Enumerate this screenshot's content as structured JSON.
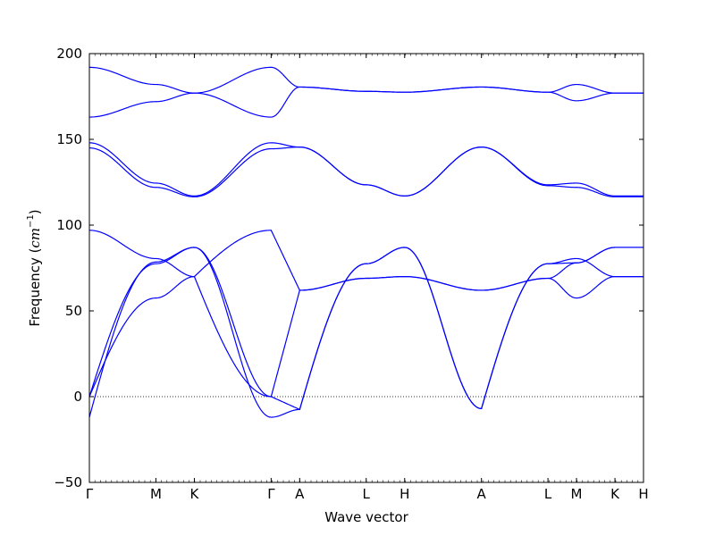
{
  "chart_data": {
    "type": "line",
    "title": "",
    "xlabel": "Wave vector",
    "ylabel_text": "Frequency (",
    "ylabel_unit_base": "cm",
    "ylabel_unit_exp": "−1",
    "ylabel_close": ")",
    "ylim": [
      -50,
      200
    ],
    "y_ticks": [
      -50,
      0,
      50,
      100,
      150,
      200
    ],
    "y_tick_labels": [
      "−50",
      "0",
      "50",
      "100",
      "150",
      "200"
    ],
    "x_ticks": [
      {
        "label": "Γ",
        "x": 0.0
      },
      {
        "label": "M",
        "x": 0.557
      },
      {
        "label": "K",
        "x": 0.879
      },
      {
        "label": "Γ",
        "x": 1.522
      },
      {
        "label": "A",
        "x": 1.761
      },
      {
        "label": "L",
        "x": 2.318
      },
      {
        "label": "H",
        "x": 2.64
      },
      {
        "label": "A",
        "x": 3.283
      },
      {
        "label": "L",
        "x": 3.84
      },
      {
        "label": "M",
        "x": 4.079
      },
      {
        "label": "K",
        "x": 4.401
      },
      {
        "label": "H",
        "x": 4.64
      }
    ],
    "xlim": [
      0,
      4.64
    ],
    "zero_line": {
      "y": 0,
      "style": "dotted"
    },
    "line_color": "#0000ff",
    "series": [
      {
        "segments": [
          {
            "x": [
              0,
              0.557
            ],
            "y": [
              192,
              182
            ],
            "shape": "cos"
          },
          {
            "x": [
              0.557,
              0.879
            ],
            "y": [
              182,
              177
            ],
            "shape": "cos"
          },
          {
            "x": [
              0.879,
              1.522
            ],
            "y": [
              177,
              192
            ],
            "shape": "cos"
          },
          {
            "x": [
              1.522,
              1.761
            ],
            "y": [
              192,
              180.5
            ],
            "shape": "cos"
          },
          {
            "x": [
              1.761,
              2.318
            ],
            "y": [
              180.5,
              178
            ],
            "shape": "cos"
          },
          {
            "x": [
              2.318,
              2.64
            ],
            "y": [
              178,
              177.5
            ],
            "shape": "cos"
          },
          {
            "x": [
              2.64,
              3.283
            ],
            "y": [
              177.5,
              180.5
            ],
            "shape": "cos"
          },
          {
            "x": [
              3.283,
              3.84
            ],
            "y": [
              180.5,
              177.5
            ],
            "shape": "cos"
          },
          {
            "x": [
              3.84,
              4.079
            ],
            "y": [
              177.5,
              182
            ],
            "shape": "cos"
          },
          {
            "x": [
              4.079,
              4.401
            ],
            "y": [
              182,
              177
            ],
            "shape": "cos"
          },
          {
            "x": [
              4.401,
              4.64
            ],
            "y": [
              177,
              177
            ],
            "shape": "cos"
          }
        ]
      },
      {
        "segments": [
          {
            "x": [
              0,
              0.557
            ],
            "y": [
              163,
              172
            ],
            "shape": "cos"
          },
          {
            "x": [
              0.557,
              0.879
            ],
            "y": [
              172,
              177
            ],
            "shape": "cos"
          },
          {
            "x": [
              0.879,
              1.522
            ],
            "y": [
              177,
              163
            ],
            "shape": "cos"
          },
          {
            "x": [
              1.522,
              1.761
            ],
            "y": [
              163,
              180.5
            ],
            "shape": "cos"
          },
          {
            "x": [
              1.761,
              2.318
            ],
            "y": [
              180.5,
              178
            ],
            "shape": "cos"
          },
          {
            "x": [
              2.318,
              2.64
            ],
            "y": [
              178,
              177.5
            ],
            "shape": "cos"
          },
          {
            "x": [
              2.64,
              3.283
            ],
            "y": [
              177.5,
              180.5
            ],
            "shape": "cos"
          },
          {
            "x": [
              3.283,
              3.84
            ],
            "y": [
              180.5,
              177.5
            ],
            "shape": "cos"
          },
          {
            "x": [
              3.84,
              4.079
            ],
            "y": [
              177.5,
              172.5
            ],
            "shape": "cos"
          },
          {
            "x": [
              4.079,
              4.401
            ],
            "y": [
              172.5,
              177
            ],
            "shape": "cos"
          },
          {
            "x": [
              4.401,
              4.64
            ],
            "y": [
              177,
              177
            ],
            "shape": "cos"
          }
        ]
      },
      {
        "segments": [
          {
            "x": [
              0,
              0.557
            ],
            "y": [
              148,
              124.5
            ],
            "shape": "cos"
          },
          {
            "x": [
              0.557,
              0.879
            ],
            "y": [
              124.5,
              117
            ],
            "shape": "cos"
          },
          {
            "x": [
              0.879,
              1.522
            ],
            "y": [
              117,
              148
            ],
            "shape": "cos"
          },
          {
            "x": [
              1.522,
              1.761
            ],
            "y": [
              148,
              145.5
            ],
            "shape": "cos"
          },
          {
            "x": [
              1.761,
              2.318
            ],
            "y": [
              145.5,
              123.5
            ],
            "shape": "cos"
          },
          {
            "x": [
              2.318,
              2.64
            ],
            "y": [
              123.5,
              117
            ],
            "shape": "cos"
          },
          {
            "x": [
              2.64,
              3.283
            ],
            "y": [
              117,
              145.5
            ],
            "shape": "cos"
          },
          {
            "x": [
              3.283,
              3.84
            ],
            "y": [
              145.5,
              123.5
            ],
            "shape": "cos"
          },
          {
            "x": [
              3.84,
              4.079
            ],
            "y": [
              123.5,
              124.5
            ],
            "shape": "cos"
          },
          {
            "x": [
              4.079,
              4.401
            ],
            "y": [
              124.5,
              117
            ],
            "shape": "cos"
          },
          {
            "x": [
              4.401,
              4.64
            ],
            "y": [
              117,
              117
            ],
            "shape": "cos"
          }
        ]
      },
      {
        "segments": [
          {
            "x": [
              0,
              0.557
            ],
            "y": [
              145,
              122
            ],
            "shape": "cos"
          },
          {
            "x": [
              0.557,
              0.879
            ],
            "y": [
              122,
              116.5
            ],
            "shape": "cos"
          },
          {
            "x": [
              0.879,
              1.522
            ],
            "y": [
              116.5,
              144.5
            ],
            "shape": "cos"
          },
          {
            "x": [
              1.522,
              1.761
            ],
            "y": [
              144.5,
              145.5
            ],
            "shape": "cos"
          },
          {
            "x": [
              1.761,
              2.318
            ],
            "y": [
              145.5,
              123.5
            ],
            "shape": "cos"
          },
          {
            "x": [
              2.318,
              2.64
            ],
            "y": [
              123.5,
              117
            ],
            "shape": "cos"
          },
          {
            "x": [
              2.64,
              3.283
            ],
            "y": [
              117,
              145.5
            ],
            "shape": "cos"
          },
          {
            "x": [
              3.283,
              3.84
            ],
            "y": [
              145.5,
              123
            ],
            "shape": "cos"
          },
          {
            "x": [
              3.84,
              4.079
            ],
            "y": [
              123,
              122
            ],
            "shape": "cos"
          },
          {
            "x": [
              4.079,
              4.401
            ],
            "y": [
              122,
              116.5
            ],
            "shape": "cos"
          },
          {
            "x": [
              4.401,
              4.64
            ],
            "y": [
              116.5,
              116.5
            ],
            "shape": "cos"
          }
        ]
      },
      {
        "segments": [
          {
            "x": [
              0,
              0.557
            ],
            "y": [
              97,
              80.5
            ],
            "shape": "cos"
          },
          {
            "x": [
              0.557,
              0.879
            ],
            "y": [
              80.5,
              70
            ],
            "shape": "cos"
          },
          {
            "x": [
              0.879,
              1.522
            ],
            "y": [
              70,
              0
            ],
            "shape": "sin"
          },
          {
            "x": [
              1.522,
              1.761
            ],
            "y": [
              0,
              -7.5
            ],
            "shape": "linear"
          },
          {
            "x": [
              1.761,
              2.318
            ],
            "y": [
              -7.5,
              77.5
            ],
            "shape": "sin"
          },
          {
            "x": [
              2.318,
              2.64
            ],
            "y": [
              77.5,
              87
            ],
            "shape": "cos"
          },
          {
            "x": [
              2.64,
              3.283
            ],
            "y": [
              87,
              -7
            ],
            "shape": "cos"
          },
          {
            "x": [
              3.283,
              3.84
            ],
            "y": [
              -7,
              77.5
            ],
            "shape": "sin"
          },
          {
            "x": [
              3.84,
              4.079
            ],
            "y": [
              77.5,
              80.5
            ],
            "shape": "cos"
          },
          {
            "x": [
              4.079,
              4.401
            ],
            "y": [
              80.5,
              70
            ],
            "shape": "cos"
          },
          {
            "x": [
              4.401,
              4.64
            ],
            "y": [
              70,
              70
            ],
            "shape": "cos"
          }
        ]
      },
      {
        "segments": [
          {
            "x": [
              0,
              0.557
            ],
            "y": [
              0,
              57.5
            ],
            "shape": "sin"
          },
          {
            "x": [
              0.557,
              0.879
            ],
            "y": [
              57.5,
              70
            ],
            "shape": "cos"
          },
          {
            "x": [
              0.879,
              1.522
            ],
            "y": [
              70,
              97
            ],
            "shape": "sin"
          },
          {
            "x": [
              1.522,
              1.761
            ],
            "y": [
              97,
              62
            ],
            "shape": "linear"
          },
          {
            "x": [
              1.761,
              2.318
            ],
            "y": [
              62,
              69
            ],
            "shape": "cos"
          },
          {
            "x": [
              2.318,
              2.64
            ],
            "y": [
              69,
              70
            ],
            "shape": "cos"
          },
          {
            "x": [
              2.64,
              3.283
            ],
            "y": [
              70,
              62
            ],
            "shape": "cos"
          },
          {
            "x": [
              3.283,
              3.84
            ],
            "y": [
              62,
              69
            ],
            "shape": "cos"
          },
          {
            "x": [
              3.84,
              4.079
            ],
            "y": [
              69,
              57.5
            ],
            "shape": "cos"
          },
          {
            "x": [
              4.079,
              4.401
            ],
            "y": [
              57.5,
              70
            ],
            "shape": "cos"
          },
          {
            "x": [
              4.401,
              4.64
            ],
            "y": [
              70,
              70
            ],
            "shape": "cos"
          }
        ]
      },
      {
        "segments": [
          {
            "x": [
              0,
              0.557
            ],
            "y": [
              0,
              77.5
            ],
            "shape": "sin"
          },
          {
            "x": [
              0.557,
              0.879
            ],
            "y": [
              77.5,
              87
            ],
            "shape": "cos"
          },
          {
            "x": [
              0.879,
              1.522
            ],
            "y": [
              87,
              0
            ],
            "shape": "cos"
          },
          {
            "x": [
              1.522,
              1.761
            ],
            "y": [
              0,
              62
            ],
            "shape": "linear"
          },
          {
            "x": [
              1.761,
              2.318
            ],
            "y": [
              62,
              69
            ],
            "shape": "cos"
          },
          {
            "x": [
              2.318,
              2.64
            ],
            "y": [
              69,
              70
            ],
            "shape": "cos"
          },
          {
            "x": [
              2.64,
              3.283
            ],
            "y": [
              70,
              62
            ],
            "shape": "cos"
          },
          {
            "x": [
              3.283,
              3.84
            ],
            "y": [
              62,
              69
            ],
            "shape": "cos"
          },
          {
            "x": [
              3.84,
              4.079
            ],
            "y": [
              69,
              78
            ],
            "shape": "cos"
          },
          {
            "x": [
              4.079,
              4.401
            ],
            "y": [
              78,
              87
            ],
            "shape": "cos"
          },
          {
            "x": [
              4.401,
              4.64
            ],
            "y": [
              87,
              87
            ],
            "shape": "cos"
          }
        ]
      },
      {
        "segments": [
          {
            "x": [
              0,
              0.557
            ],
            "y": [
              -12,
              78.5
            ],
            "shape": "sin"
          },
          {
            "x": [
              0.557,
              0.879
            ],
            "y": [
              78.5,
              87
            ],
            "shape": "cos"
          },
          {
            "x": [
              0.879,
              1.522
            ],
            "y": [
              87,
              -12
            ],
            "shape": "cos"
          },
          {
            "x": [
              1.522,
              1.761
            ],
            "y": [
              -12,
              -7.5
            ],
            "shape": "cos"
          },
          {
            "x": [
              1.761,
              2.318
            ],
            "y": [
              -7.5,
              77.5
            ],
            "shape": "sin"
          },
          {
            "x": [
              2.318,
              2.64
            ],
            "y": [
              77.5,
              87
            ],
            "shape": "cos"
          },
          {
            "x": [
              2.64,
              3.283
            ],
            "y": [
              87,
              -7
            ],
            "shape": "cos"
          },
          {
            "x": [
              3.283,
              3.84
            ],
            "y": [
              -7,
              77.5
            ],
            "shape": "sin"
          },
          {
            "x": [
              3.84,
              4.079
            ],
            "y": [
              77.5,
              78
            ],
            "shape": "cos"
          },
          {
            "x": [
              4.079,
              4.401
            ],
            "y": [
              78,
              87
            ],
            "shape": "cos"
          },
          {
            "x": [
              4.401,
              4.64
            ],
            "y": [
              87,
              87
            ],
            "shape": "cos"
          }
        ]
      }
    ]
  }
}
